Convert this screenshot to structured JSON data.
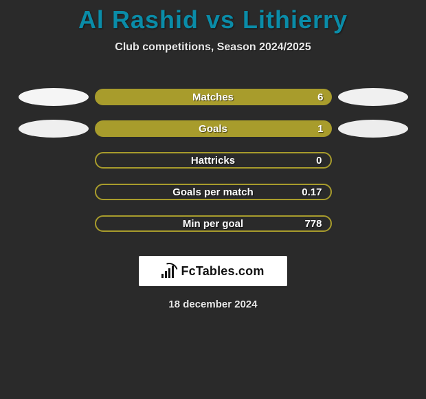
{
  "title": "Al Rashid vs Lithierry",
  "subtitle": "Club competitions, Season 2024/2025",
  "colors": {
    "bar_fill": "#a89c2c",
    "bar_outline": "#a89c2c",
    "ellipse_left_a": "#f5f5f5",
    "ellipse_left_b": "#efefef",
    "ellipse_right_a": "#f0f0f0",
    "ellipse_right_b": "#ededed",
    "title": "#0a8ca8",
    "background": "#2a2a2a"
  },
  "rows": [
    {
      "label": "Matches",
      "value": "6",
      "filled": true,
      "left_ellipse_color": "#f5f5f5",
      "right_ellipse_color": "#f0f0f0"
    },
    {
      "label": "Goals",
      "value": "1",
      "filled": true,
      "left_ellipse_color": "#efefef",
      "right_ellipse_color": "#ededed"
    },
    {
      "label": "Hattricks",
      "value": "0",
      "filled": false,
      "left_ellipse_color": null,
      "right_ellipse_color": null
    },
    {
      "label": "Goals per match",
      "value": "0.17",
      "filled": false,
      "left_ellipse_color": null,
      "right_ellipse_color": null
    },
    {
      "label": "Min per goal",
      "value": "778",
      "filled": false,
      "left_ellipse_color": null,
      "right_ellipse_color": null
    }
  ],
  "brand": "FcTables.com",
  "date": "18 december 2024"
}
